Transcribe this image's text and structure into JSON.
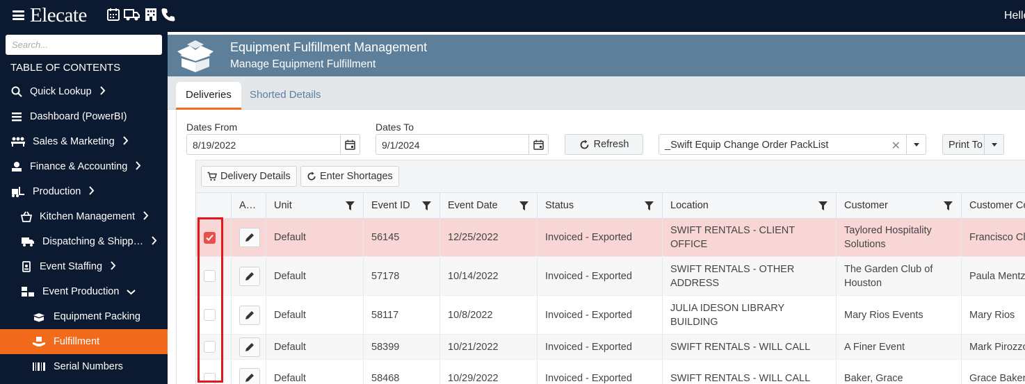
{
  "topbar": {
    "brand": "Elecate",
    "icons": [
      "calendar-icon",
      "truck-icon",
      "building-icon",
      "phone-icon"
    ],
    "greeting": "Hello"
  },
  "sidebar": {
    "search_placeholder": "Search...",
    "toc_label": "TABLE OF CONTENTS",
    "items": [
      {
        "label": "Quick Lookup",
        "icon": "search-icon",
        "chevron": "right"
      },
      {
        "label": "Dashboard (PowerBI)",
        "icon": "list-icon",
        "chevron": ""
      },
      {
        "label": "Sales & Marketing",
        "icon": "people-icon",
        "chevron": "right"
      },
      {
        "label": "Finance & Accounting",
        "icon": "money-icon",
        "chevron": "right"
      },
      {
        "label": "Production",
        "icon": "forklift-icon",
        "chevron": "right"
      },
      {
        "label": "Kitchen Management",
        "icon": "basket-icon",
        "chevron": "right"
      },
      {
        "label": "Dispatching & Shipp…",
        "icon": "truck-icon",
        "chevron": "right"
      },
      {
        "label": "Event Staffing",
        "icon": "badge-icon",
        "chevron": "right"
      },
      {
        "label": "Event Production",
        "icon": "boxes-icon",
        "chevron": "down"
      },
      {
        "label": "Equipment Packing",
        "icon": "box-open-icon",
        "chevron": ""
      },
      {
        "label": "Fulfillment",
        "icon": "hands-box-icon",
        "chevron": ""
      },
      {
        "label": "Serial Numbers",
        "icon": "barcode-icon",
        "chevron": ""
      }
    ],
    "active_item": "Fulfillment"
  },
  "header": {
    "title": "Equipment Fulfillment Management",
    "subtitle": "Manage Equipment Fulfillment"
  },
  "tabs": [
    {
      "label": "Deliveries",
      "active": true
    },
    {
      "label": "Shorted Details",
      "active": false
    }
  ],
  "filters": {
    "dates_from_label": "Dates From",
    "dates_from_value": "8/19/2022",
    "dates_to_label": "Dates To",
    "dates_to_value": "9/1/2024",
    "refresh_label": "Refresh",
    "report_value": "_Swift Equip Change Order PackList",
    "print_label": "Print To"
  },
  "grid": {
    "toolbar": {
      "delivery_details": "Delivery Details",
      "enter_shortages": "Enter Shortages"
    },
    "columns": [
      "A…",
      "Unit",
      "Event ID",
      "Event Date",
      "Status",
      "Location",
      "Customer",
      "Customer Co"
    ],
    "rows": [
      {
        "checked": true,
        "unit": "Default",
        "event_id": "56145",
        "event_date": "12/25/2022",
        "status": "Invoiced - Exported",
        "location": "SWIFT RENTALS - CLIENT OFFICE",
        "customer": "Taylored Hospitality Solutions",
        "contact": "Francisco Ch"
      },
      {
        "checked": false,
        "unit": "Default",
        "event_id": "57178",
        "event_date": "10/14/2022",
        "status": "Invoiced - Exported",
        "location": "SWIFT RENTALS - OTHER ADDRESS",
        "customer": "The Garden Club of Houston",
        "contact": "Paula Mentz"
      },
      {
        "checked": false,
        "unit": "Default",
        "event_id": "58117",
        "event_date": "10/8/2022",
        "status": "Invoiced - Exported",
        "location": "JULIA IDESON LIBRARY BUILDING",
        "customer": "Mary Rios Events",
        "contact": "Mary Rios"
      },
      {
        "checked": false,
        "unit": "Default",
        "event_id": "58399",
        "event_date": "10/21/2022",
        "status": "Invoiced - Exported",
        "location": "SWIFT RENTALS - WILL CALL",
        "customer": "A Finer Event",
        "contact": "Mark Pirozzo"
      },
      {
        "checked": false,
        "unit": "Default",
        "event_id": "58468",
        "event_date": "10/29/2022",
        "status": "Invoiced - Exported",
        "location": "SWIFT RENTALS - WILL CALL",
        "customer": "Baker, Grace",
        "contact": "Grace Baker"
      }
    ]
  },
  "colors": {
    "accent": "#f26a1b",
    "nav_bg": "#0b1a30",
    "header_bg": "#5d7f99",
    "selected_row": "#f8d6d6",
    "highlight_border": "#e3161b"
  }
}
